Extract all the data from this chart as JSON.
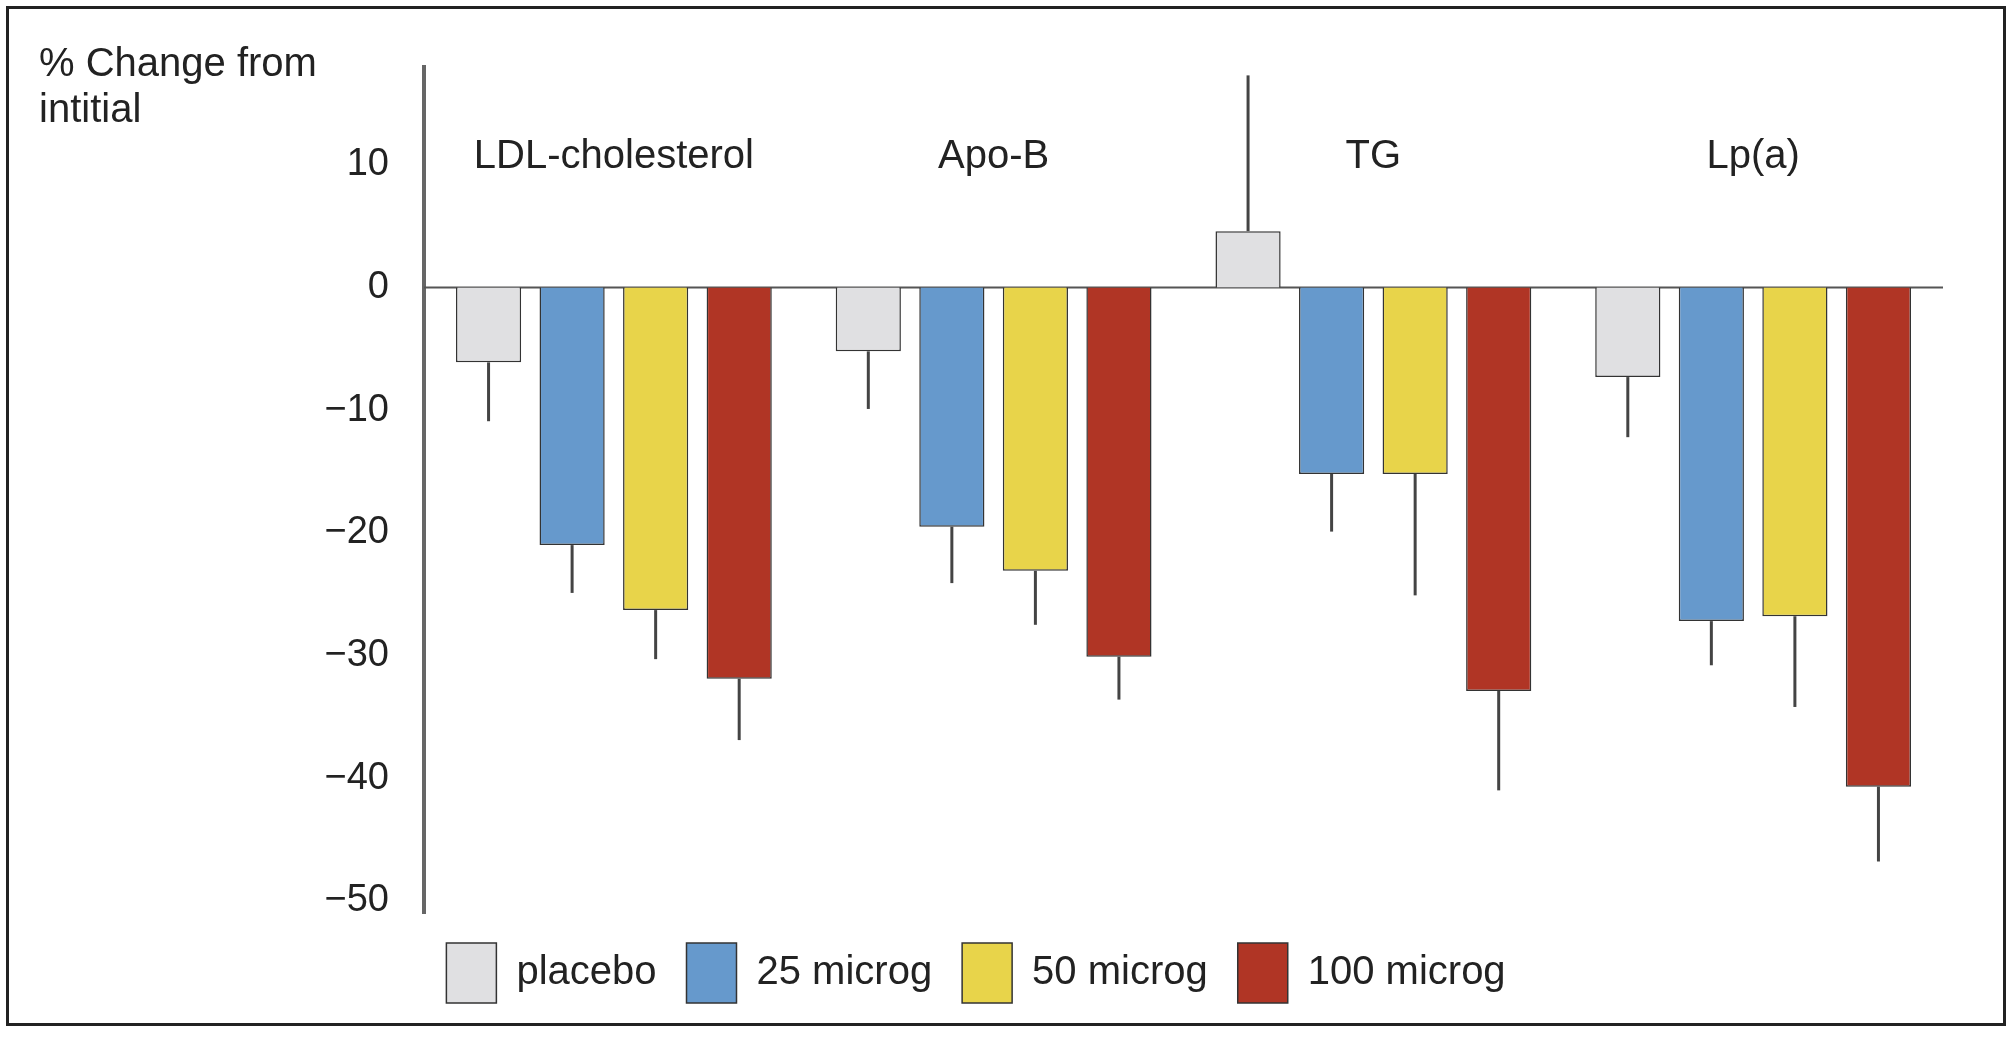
{
  "chart_data": {
    "type": "bar",
    "ylabel": "% Change from intitial",
    "categories": [
      "LDL-cholesterol",
      "Apo-B",
      "TG",
      "Lp(a)"
    ],
    "series": [
      {
        "name": "placebo",
        "color": "#e0e0e2",
        "values": [
          -6.1,
          -5.2,
          4.6,
          -7.3
        ],
        "errors": [
          [
            -10.9,
            -6.1
          ],
          [
            -9.9,
            -5.2
          ],
          [
            4.6,
            17.3
          ],
          [
            -12.2,
            -7.3
          ]
        ]
      },
      {
        "name": "25 microg",
        "color": "#6699cc",
        "values": [
          -21.0,
          -19.5,
          -15.2,
          -27.2
        ],
        "errors": [
          [
            -24.9,
            -21.0
          ],
          [
            -24.1,
            -19.5
          ],
          [
            -19.9,
            -15.2
          ],
          [
            -30.8,
            -27.2
          ]
        ]
      },
      {
        "name": "50 microg",
        "color": "#e8d44a",
        "values": [
          -26.3,
          -23.1,
          -15.2,
          -26.8
        ],
        "errors": [
          [
            -30.3,
            -26.3
          ],
          [
            -27.5,
            -23.1
          ],
          [
            -25.1,
            -15.2
          ],
          [
            -34.2,
            -26.8
          ]
        ]
      },
      {
        "name": "100 microg",
        "color": "#b03525",
        "values": [
          -31.9,
          -30.1,
          -32.9,
          -40.7
        ],
        "errors": [
          [
            -36.9,
            -31.9
          ],
          [
            -33.6,
            -30.1
          ],
          [
            -41.0,
            -32.9
          ],
          [
            -46.8,
            -40.7
          ]
        ]
      }
    ],
    "ylim": [
      -51,
      18
    ],
    "yticks": [
      10,
      0,
      -10,
      -20,
      -30,
      -40,
      -50
    ],
    "grid": false,
    "ref_lines": [
      {
        "axis": "y",
        "value": 0,
        "color": "#555555"
      }
    ],
    "legend": "bottom"
  }
}
